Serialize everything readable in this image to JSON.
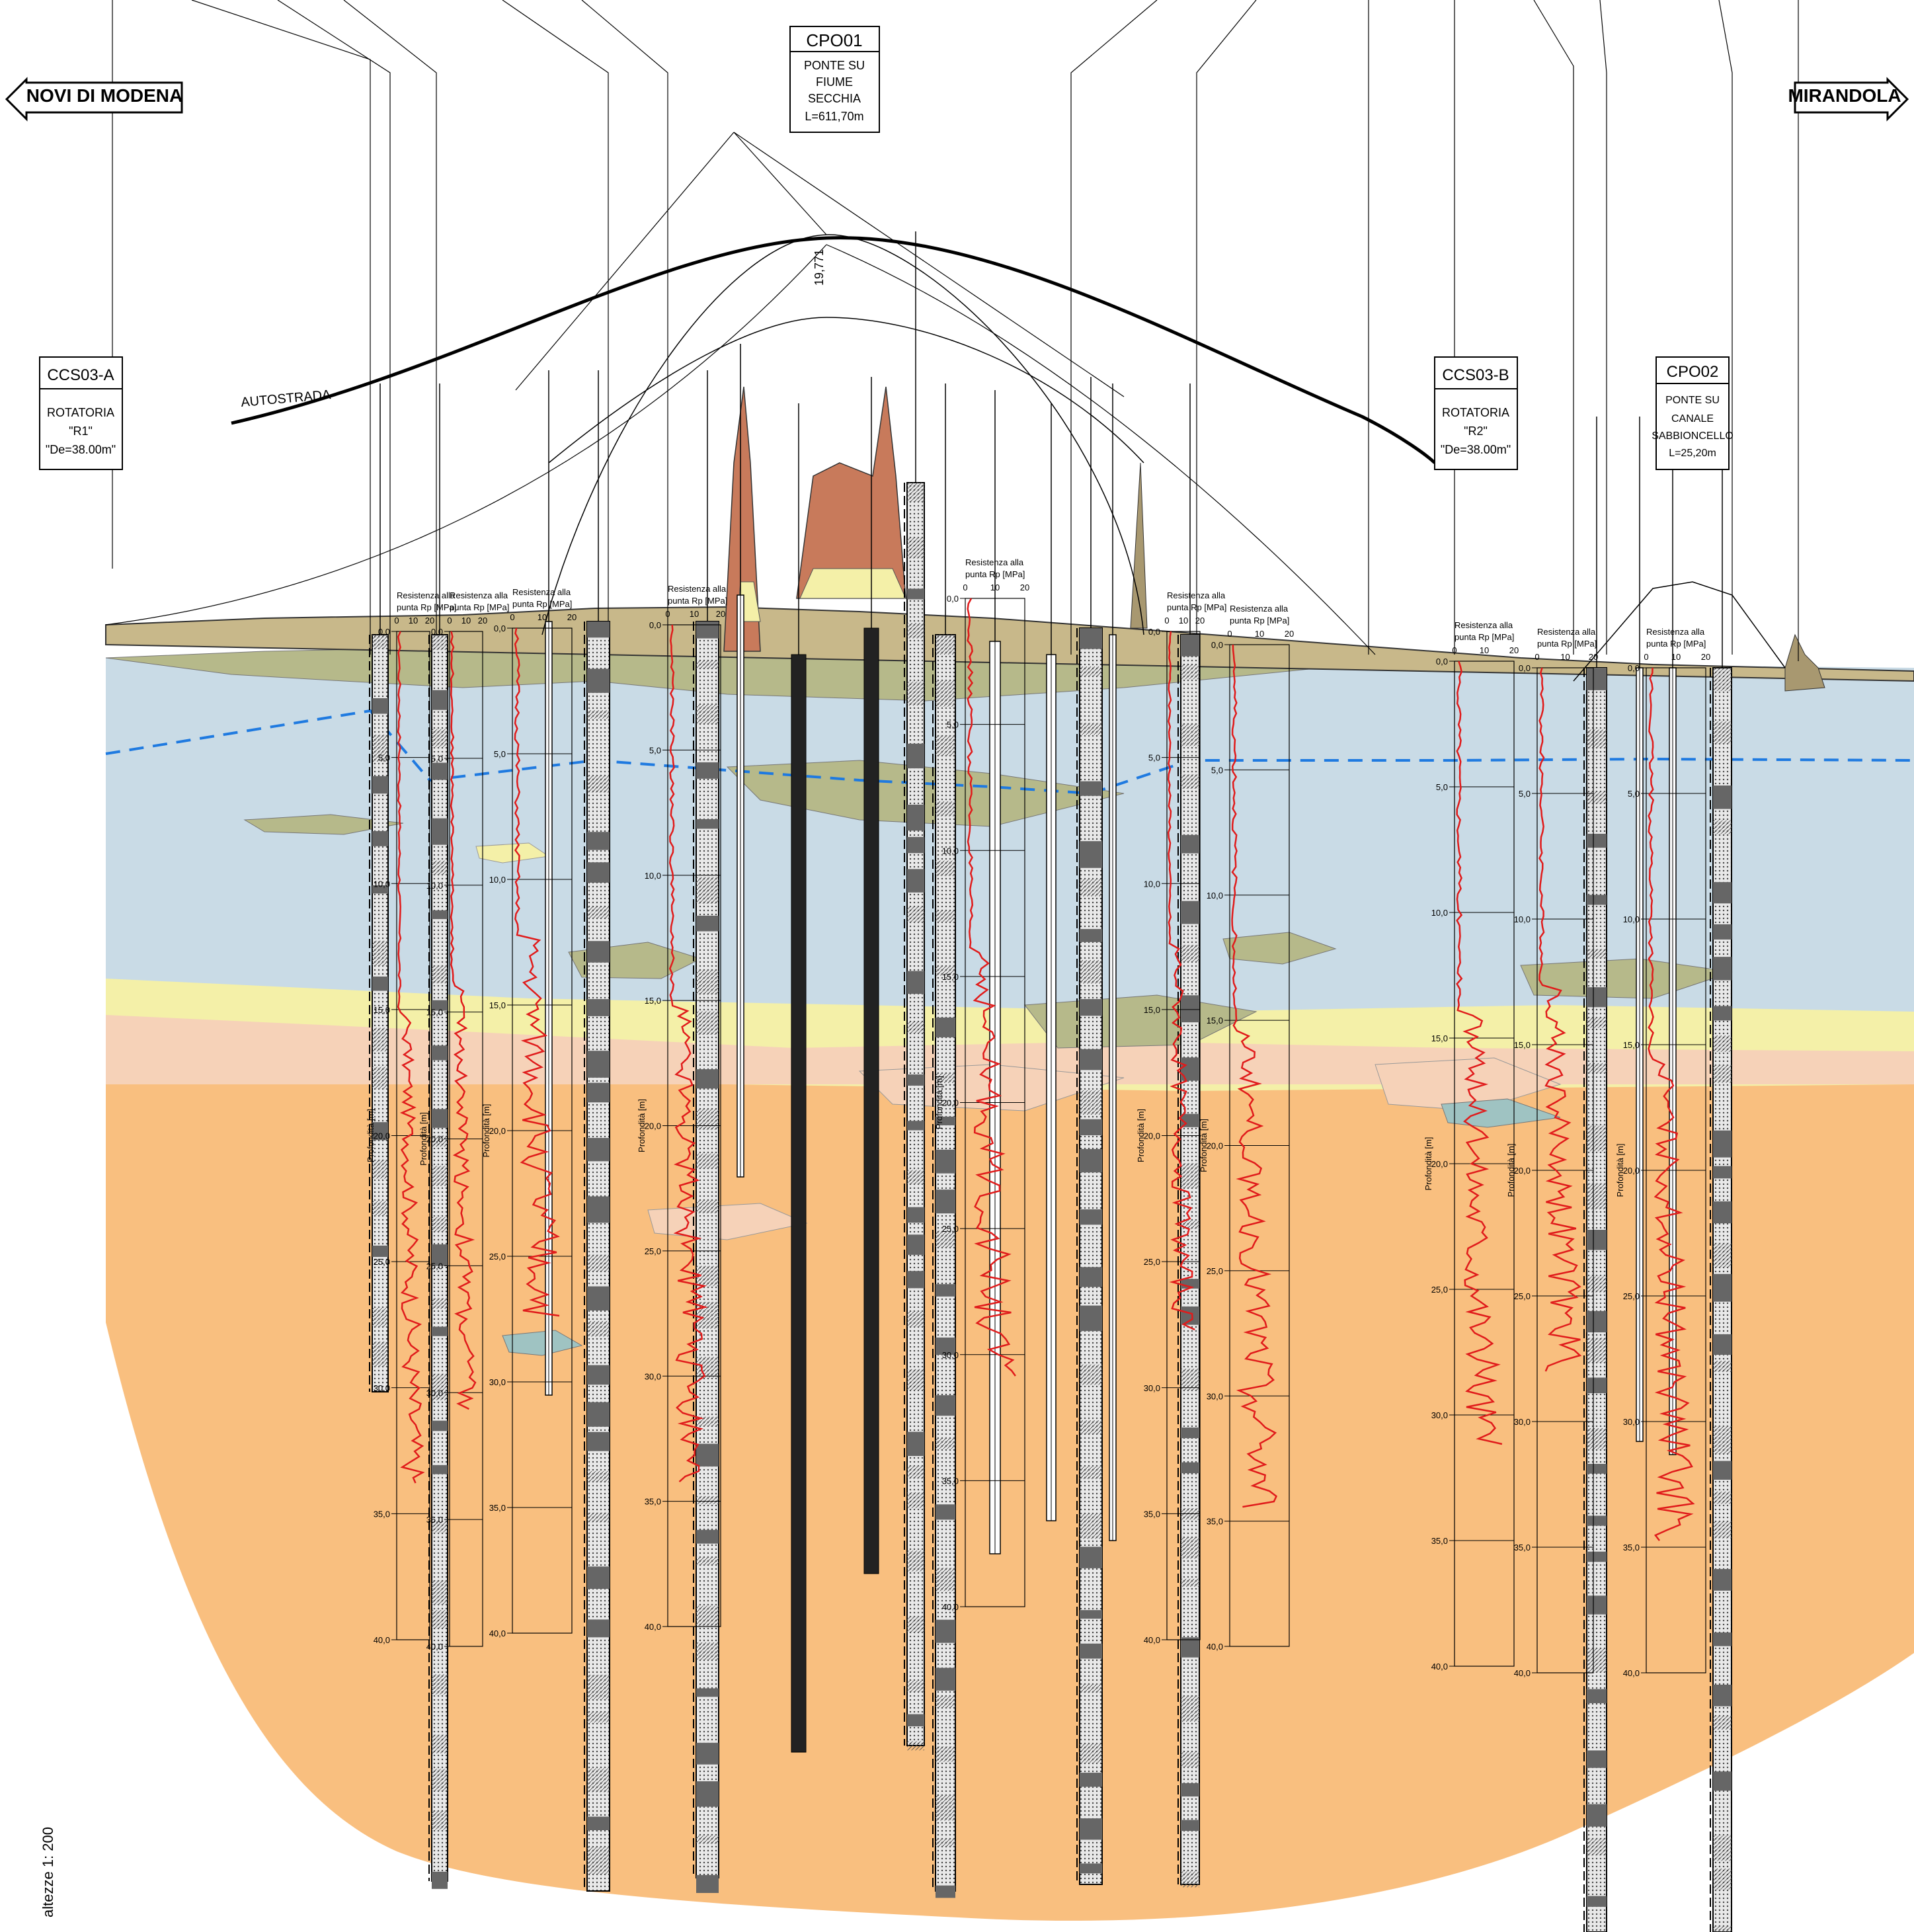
{
  "direction_left": "NOVI DI MODENA",
  "direction_right": "MIRANDOLA",
  "road_label": "AUTOSTRADA",
  "scale_note": "altezze 1: 200",
  "crest_elevation": "19,771",
  "structures": [
    {
      "code": "CPO01",
      "lines": [
        "PONTE SU",
        "FIUME",
        "SECCHIA",
        "L=611,70m"
      ]
    },
    {
      "code": "CCS03-A",
      "lines": [
        "ROTATORIA",
        "\"R1\"",
        "\"De=38.00m\""
      ]
    },
    {
      "code": "CCS03-B",
      "lines": [
        "ROTATORIA",
        "\"R2\"",
        "\"De=38.00m\""
      ]
    },
    {
      "code": "CPO02",
      "lines": [
        "PONTE SU",
        "CANALE",
        "SABBIONCELLO",
        "L=25,20m"
      ]
    }
  ],
  "cpt_header": [
    "Resistenza alla",
    "punta Rp [MPa]"
  ],
  "cpt_scale": [
    "0",
    "10",
    "20"
  ],
  "depth_axis_label": "Profondità [m]",
  "depth_ticks": [
    "0,0",
    "5,0",
    "10,0",
    "15,0",
    "20,0",
    "25,0",
    "30,0",
    "35,0",
    "40,0"
  ],
  "colors": {
    "clay_silt": "#c9dbe6",
    "silt_green": "#b6b98a",
    "sand_yellow": "#f4f0a8",
    "sand_pink": "#f6d2b8",
    "deep_sand": "#f9bf7f",
    "fill_red": "#c87a5b",
    "water_table": "#1f7ae0",
    "cpt_trace": "#e01b1b"
  }
}
